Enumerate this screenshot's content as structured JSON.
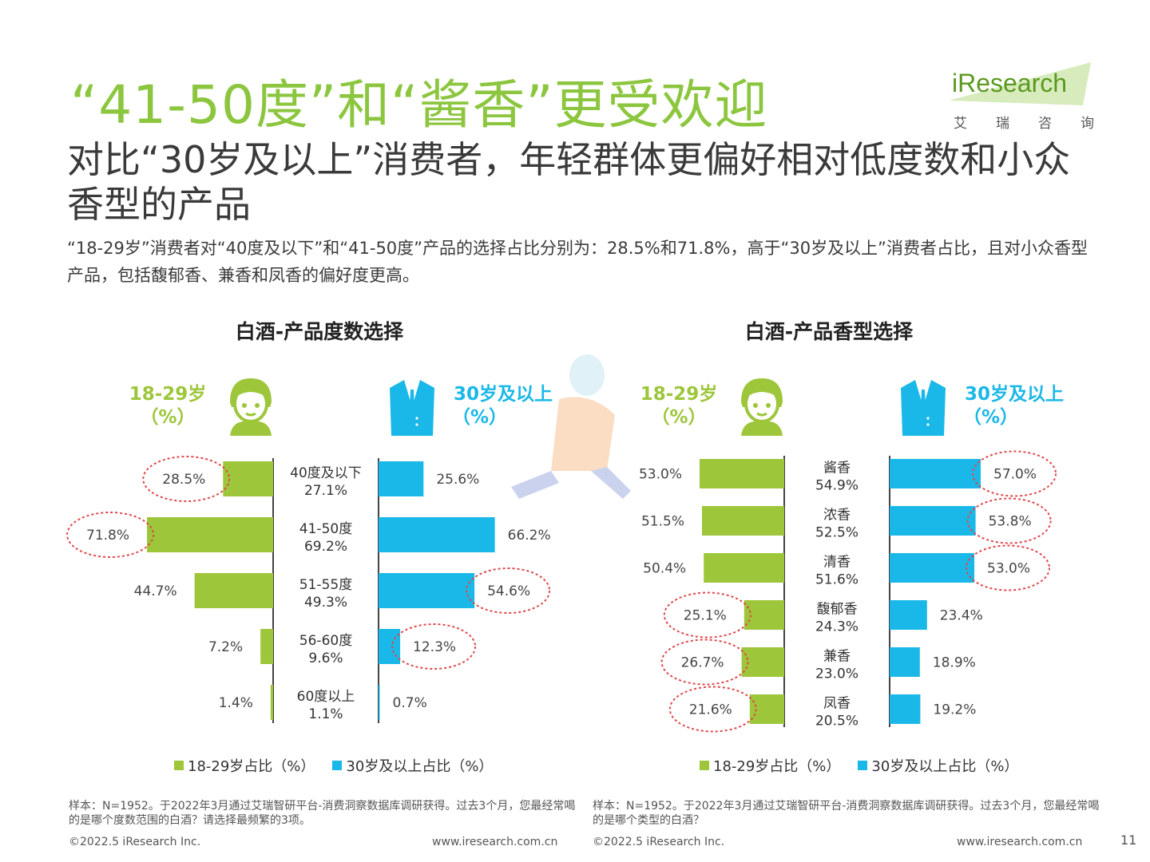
{
  "title": "“41-50度”和“酱香”更受欢迎",
  "subtitle": "对比“30岁及以上”消费者，年轻群体更偏好相对低度数和小众香型的产品",
  "description": "“18-29岁”消费者对“40度及以下”和“41-50度”产品的选择占比分别为：28.5%和71.8%，高于“30岁及以上”消费者占比，且对小众香型产品，包括馥郁香、兼香和凤香的偏好度更高。",
  "logo": {
    "brand": "iResearch",
    "sub": "艾瑞咨询"
  },
  "groups": {
    "young": {
      "name": "18-29岁",
      "unit": "（%）"
    },
    "old": {
      "name": "30岁及以上",
      "unit": "（%）"
    }
  },
  "legend": {
    "young": "18-29岁占比（%）",
    "old": "30岁及以上占比（%）"
  },
  "colors": {
    "green": "#9dc63a",
    "blue": "#1ab8e8",
    "highlight": "#e0474c"
  },
  "chart_data": [
    {
      "type": "bar",
      "title": "白酒-产品度数选择",
      "categories": [
        "40度及以下",
        "41-50度",
        "51-55度",
        "56-60度",
        "60度以上"
      ],
      "totals": [
        "27.1%",
        "69.2%",
        "49.3%",
        "9.6%",
        "1.1%"
      ],
      "series": [
        {
          "name": "18-29岁占比（%）",
          "values": [
            28.5,
            71.8,
            44.7,
            7.2,
            1.4
          ],
          "highlighted": [
            true,
            true,
            false,
            false,
            false
          ]
        },
        {
          "name": "30岁及以上占比（%）",
          "values": [
            25.6,
            66.2,
            54.6,
            12.3,
            0.7
          ],
          "highlighted": [
            false,
            false,
            true,
            true,
            false
          ]
        }
      ],
      "orientation": "horizontal-diverging",
      "xlim": [
        0,
        80
      ]
    },
    {
      "type": "bar",
      "title": "白酒-产品香型选择",
      "categories": [
        "酱香",
        "浓香",
        "清香",
        "馥郁香",
        "兼香",
        "凤香"
      ],
      "totals": [
        "54.9%",
        "52.5%",
        "51.6%",
        "24.3%",
        "23.0%",
        "20.5%"
      ],
      "series": [
        {
          "name": "18-29岁占比（%）",
          "values": [
            53.0,
            51.5,
            50.4,
            25.1,
            26.7,
            21.6
          ],
          "highlighted": [
            false,
            false,
            false,
            true,
            true,
            true
          ]
        },
        {
          "name": "30岁及以上占比（%）",
          "values": [
            57.0,
            53.8,
            53.0,
            23.4,
            18.9,
            19.2
          ],
          "highlighted": [
            true,
            true,
            true,
            false,
            false,
            false
          ]
        }
      ],
      "orientation": "horizontal-diverging",
      "xlim": [
        0,
        80
      ]
    }
  ],
  "notes": [
    "样本：N=1952。于2022年3月通过艾瑞智研平台-消费洞察数据库调研获得。过去3个月，您最经常喝的是哪个度数范围的白酒？请选择最频繁的3项。",
    "样本：N=1952。于2022年3月通过艾瑞智研平台-消费洞察数据库调研获得。过去3个月，您最经常喝的是哪个类型的白酒？"
  ],
  "footer": {
    "copyright": "©2022.5 iResearch Inc.",
    "url": "www.iresearch.com.cn",
    "page": "11"
  }
}
